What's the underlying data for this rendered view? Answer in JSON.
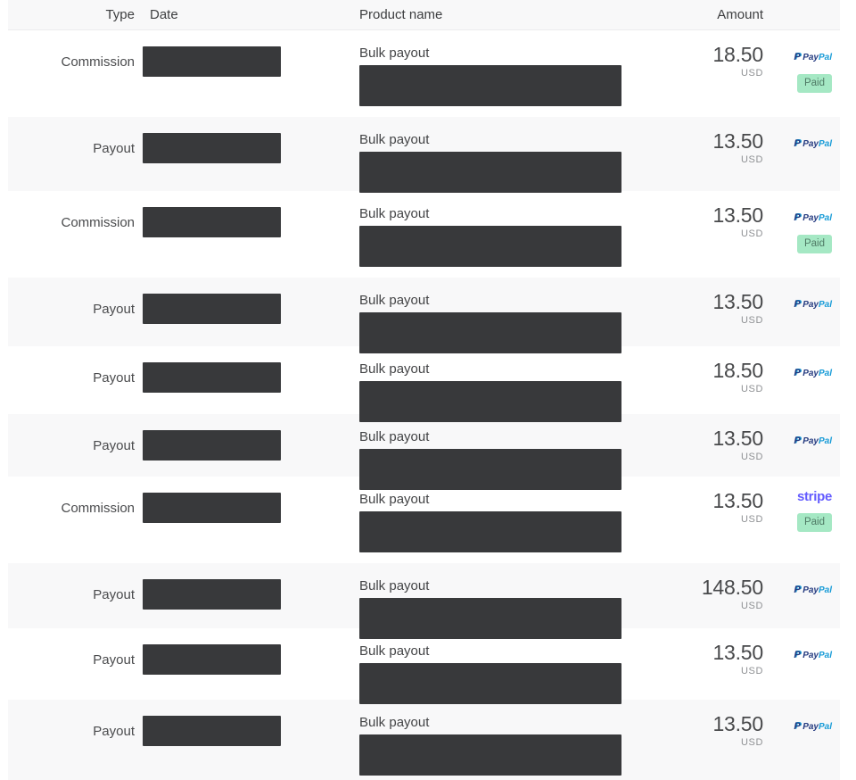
{
  "table": {
    "headers": {
      "type": "Type",
      "date": "Date",
      "product": "Product name",
      "amount": "Amount"
    },
    "paid_label": "Paid",
    "redacted_fields": [
      "date",
      "product_details"
    ],
    "rows": [
      {
        "type": "Commission",
        "product": "Bulk payout",
        "amount": "18.50",
        "currency": "USD",
        "provider": "paypal",
        "paid": true
      },
      {
        "type": "Payout",
        "product": "Bulk payout",
        "amount": "13.50",
        "currency": "USD",
        "provider": "paypal",
        "paid": false
      },
      {
        "type": "Commission",
        "product": "Bulk payout",
        "amount": "13.50",
        "currency": "USD",
        "provider": "paypal",
        "paid": true
      },
      {
        "type": "Payout",
        "product": "Bulk payout",
        "amount": "13.50",
        "currency": "USD",
        "provider": "paypal",
        "paid": false
      },
      {
        "type": "Payout",
        "product": "Bulk payout",
        "amount": "18.50",
        "currency": "USD",
        "provider": "paypal",
        "paid": false
      },
      {
        "type": "Payout",
        "product": "Bulk payout",
        "amount": "13.50",
        "currency": "USD",
        "provider": "paypal",
        "paid": false
      },
      {
        "type": "Commission",
        "product": "Bulk payout",
        "amount": "13.50",
        "currency": "USD",
        "provider": "stripe",
        "paid": true
      },
      {
        "type": "Payout",
        "product": "Bulk payout",
        "amount": "148.50",
        "currency": "USD",
        "provider": "paypal",
        "paid": false
      },
      {
        "type": "Payout",
        "product": "Bulk payout",
        "amount": "13.50",
        "currency": "USD",
        "provider": "paypal",
        "paid": false
      },
      {
        "type": "Payout",
        "product": "Bulk payout",
        "amount": "13.50",
        "currency": "USD",
        "provider": "paypal",
        "paid": false
      }
    ]
  },
  "logos": {
    "paypal_mark": "P",
    "paypal_pay": "Pay",
    "paypal_pal": "Pal",
    "stripe": "stripe"
  },
  "colors": {
    "paypal_dark_blue": "#253b80",
    "paypal_light_blue": "#179bd7",
    "stripe_purple": "#635bff",
    "paid_badge_bg": "#a5e8c4",
    "paid_badge_text": "#4f7a65",
    "redaction_box": "#38393b",
    "row_stripe_bg": "#f8f8f9"
  }
}
